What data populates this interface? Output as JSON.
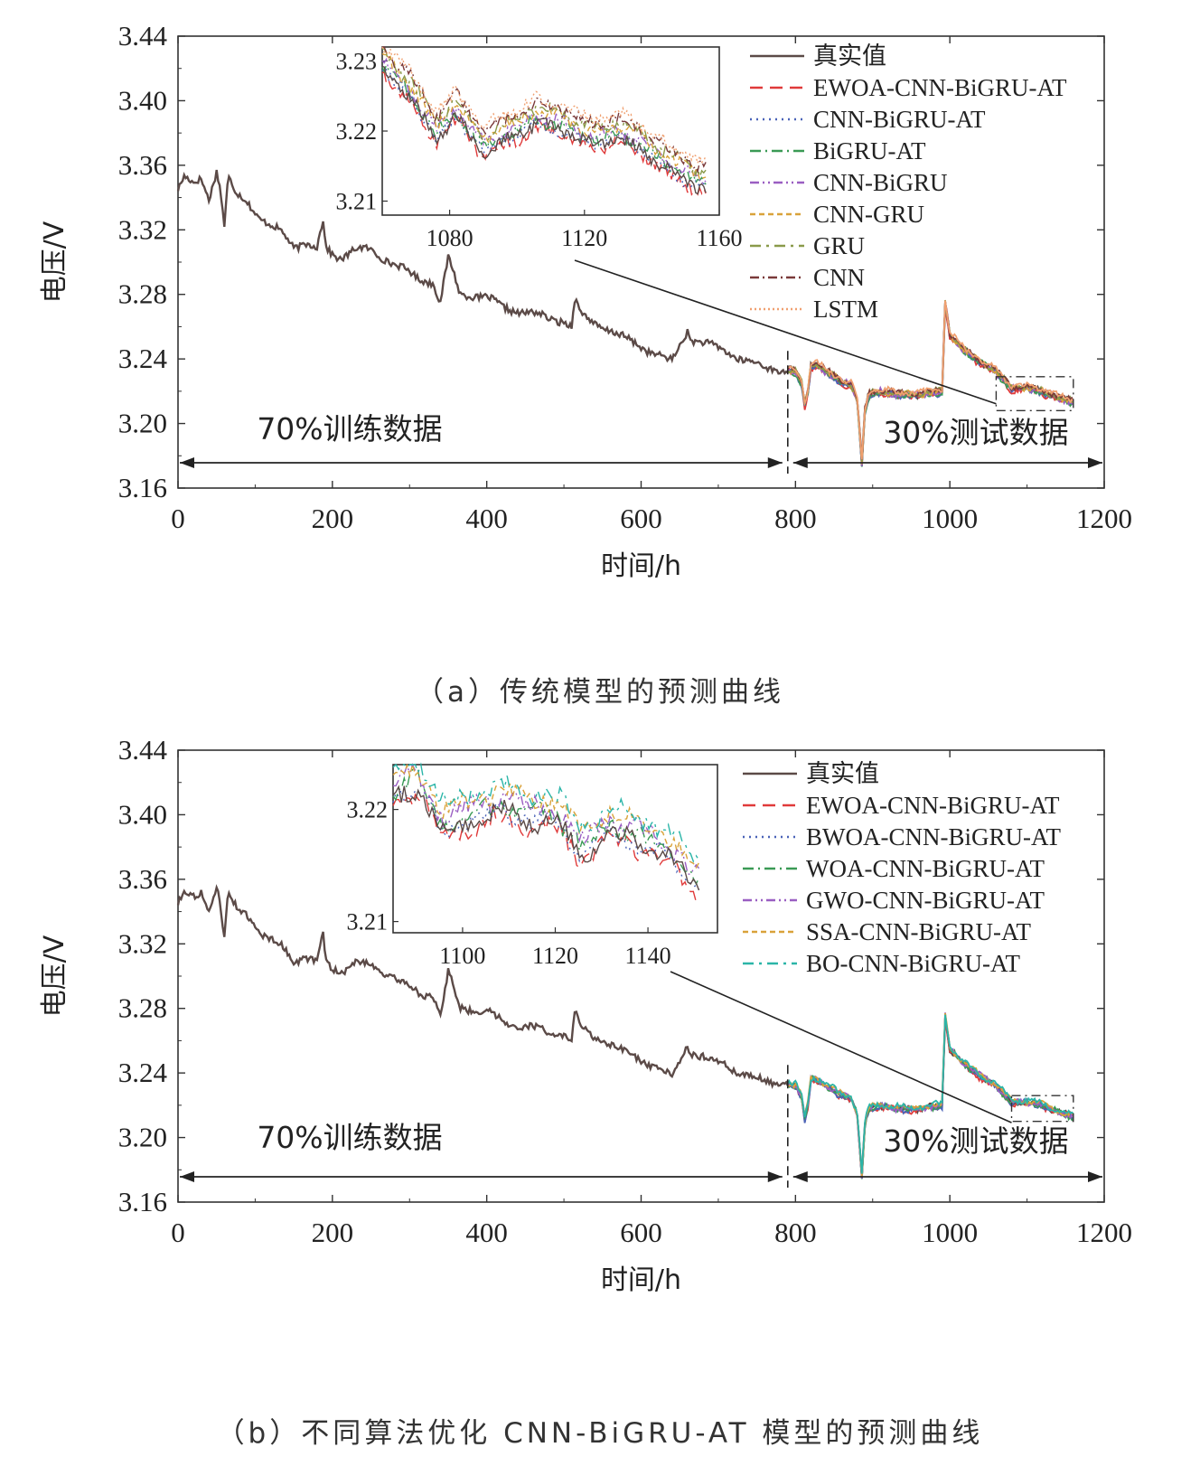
{
  "chart_data": [
    {
      "type": "line",
      "caption": "（a）传统模型的预测曲线",
      "xlabel": "时间/h",
      "ylabel": "电压/V",
      "xlim": [
        0,
        1200
      ],
      "ylim": [
        3.16,
        3.44
      ],
      "x_ticks": [
        "0",
        "200",
        "400",
        "600",
        "800",
        "1000",
        "1200"
      ],
      "y_ticks": [
        "3.16",
        "3.20",
        "3.24",
        "3.28",
        "3.32",
        "3.36",
        "3.40",
        "3.44"
      ],
      "split_x": 790,
      "train_label": "70%训练数据",
      "test_label": "30%测试数据",
      "series": [
        {
          "name": "真实值",
          "color": "#5b4a47"
        },
        {
          "name": "EWOA-CNN-BiGRU-AT",
          "color": "#e03a3a"
        },
        {
          "name": "CNN-BiGRU-AT",
          "color": "#4a63b8"
        },
        {
          "name": "BiGRU-AT",
          "color": "#3a9a55"
        },
        {
          "name": "CNN-BiGRU",
          "color": "#9a5ec2"
        },
        {
          "name": "CNN-GRU",
          "color": "#d9a23a"
        },
        {
          "name": "GRU",
          "color": "#8a9a4a"
        },
        {
          "name": "CNN",
          "color": "#7a3a3a"
        },
        {
          "name": "LSTM",
          "color": "#f0a070"
        }
      ],
      "actual_profile": {
        "x": [
          0,
          8,
          20,
          30,
          40,
          50,
          55,
          60,
          65,
          75,
          90,
          105,
          120,
          135,
          150,
          165,
          180,
          188,
          192,
          200,
          210,
          230,
          250,
          270,
          290,
          310,
          330,
          340,
          350,
          355,
          365,
          380,
          400,
          420,
          440,
          460,
          480,
          500,
          510,
          515,
          520,
          540,
          560,
          580,
          600,
          620,
          640,
          660,
          663,
          670,
          690,
          710,
          730,
          750,
          770,
          790
        ],
        "y": [
          3.345,
          3.352,
          3.348,
          3.352,
          3.34,
          3.357,
          3.345,
          3.322,
          3.352,
          3.342,
          3.338,
          3.328,
          3.322,
          3.318,
          3.31,
          3.312,
          3.308,
          3.325,
          3.308,
          3.305,
          3.303,
          3.308,
          3.307,
          3.302,
          3.296,
          3.29,
          3.288,
          3.275,
          3.302,
          3.296,
          3.28,
          3.28,
          3.278,
          3.272,
          3.27,
          3.268,
          3.265,
          3.264,
          3.26,
          3.28,
          3.268,
          3.262,
          3.258,
          3.252,
          3.248,
          3.243,
          3.238,
          3.258,
          3.253,
          3.252,
          3.248,
          3.245,
          3.24,
          3.236,
          3.234,
          3.233
        ]
      },
      "test_profile": {
        "x": [
          790,
          800,
          808,
          812,
          816,
          820,
          828,
          840,
          860,
          872,
          880,
          886,
          890,
          895,
          910,
          930,
          960,
          990,
          994,
          1000,
          1020,
          1040,
          1060,
          1080,
          1100,
          1120,
          1140,
          1160
        ],
        "y": [
          3.233,
          3.232,
          3.225,
          3.212,
          3.22,
          3.236,
          3.236,
          3.232,
          3.226,
          3.224,
          3.215,
          3.175,
          3.208,
          3.218,
          3.22,
          3.218,
          3.218,
          3.22,
          3.275,
          3.255,
          3.245,
          3.238,
          3.232,
          3.222,
          3.222,
          3.22,
          3.216,
          3.213
        ]
      },
      "inset": {
        "xlim": [
          1060,
          1160
        ],
        "ylim": [
          3.208,
          3.232
        ],
        "x_ticks": [
          "1080",
          "1120",
          "1160"
        ],
        "y_ticks": [
          "3.21",
          "3.22",
          "3.23"
        ],
        "source_xlim": [
          1060,
          1160
        ],
        "source_ylim": [
          3.208,
          3.229
        ],
        "x": [
          1060,
          1068,
          1076,
          1082,
          1090,
          1098,
          1106,
          1114,
          1122,
          1130,
          1138,
          1146,
          1154
        ],
        "y": [
          3.229,
          3.225,
          3.219,
          3.222,
          3.217,
          3.219,
          3.221,
          3.22,
          3.218,
          3.219,
          3.217,
          3.214,
          3.212
        ]
      }
    },
    {
      "type": "line",
      "caption": "（b）不同算法优化 CNN-BiGRU-AT 模型的预测曲线",
      "xlabel": "时间/h",
      "ylabel": "电压/V",
      "xlim": [
        0,
        1200
      ],
      "ylim": [
        3.16,
        3.44
      ],
      "x_ticks": [
        "0",
        "200",
        "400",
        "600",
        "800",
        "1000",
        "1200"
      ],
      "y_ticks": [
        "3.16",
        "3.20",
        "3.24",
        "3.28",
        "3.32",
        "3.36",
        "3.40",
        "3.44"
      ],
      "split_x": 790,
      "train_label": "70%训练数据",
      "test_label": "30%测试数据",
      "series": [
        {
          "name": "真实值",
          "color": "#5b4a47"
        },
        {
          "name": "EWOA-CNN-BiGRU-AT",
          "color": "#e03a3a"
        },
        {
          "name": "BWOA-CNN-BiGRU-AT",
          "color": "#4a63b8"
        },
        {
          "name": "WOA-CNN-BiGRU-AT",
          "color": "#3a9a55"
        },
        {
          "name": "GWO-CNN-BiGRU-AT",
          "color": "#9a5ec2"
        },
        {
          "name": "SSA-CNN-BiGRU-AT",
          "color": "#d9a23a"
        },
        {
          "name": "BO-CNN-BiGRU-AT",
          "color": "#2bb5a8"
        }
      ],
      "actual_profile": {
        "x": [
          0,
          8,
          20,
          30,
          40,
          50,
          55,
          60,
          65,
          75,
          90,
          105,
          120,
          135,
          150,
          165,
          180,
          188,
          192,
          200,
          210,
          230,
          250,
          270,
          290,
          310,
          330,
          340,
          350,
          355,
          365,
          380,
          400,
          420,
          440,
          460,
          480,
          500,
          510,
          515,
          520,
          540,
          560,
          580,
          600,
          620,
          640,
          660,
          663,
          670,
          690,
          710,
          730,
          750,
          770,
          790
        ],
        "y": [
          3.345,
          3.352,
          3.348,
          3.352,
          3.34,
          3.357,
          3.345,
          3.322,
          3.352,
          3.342,
          3.338,
          3.328,
          3.322,
          3.318,
          3.31,
          3.312,
          3.308,
          3.325,
          3.308,
          3.305,
          3.303,
          3.308,
          3.307,
          3.302,
          3.296,
          3.29,
          3.288,
          3.275,
          3.302,
          3.296,
          3.28,
          3.28,
          3.278,
          3.272,
          3.27,
          3.268,
          3.265,
          3.264,
          3.26,
          3.28,
          3.268,
          3.262,
          3.258,
          3.252,
          3.248,
          3.243,
          3.238,
          3.258,
          3.253,
          3.252,
          3.248,
          3.245,
          3.24,
          3.236,
          3.234,
          3.233
        ]
      },
      "test_profile": {
        "x": [
          790,
          800,
          808,
          812,
          816,
          820,
          828,
          840,
          860,
          872,
          880,
          886,
          890,
          895,
          910,
          930,
          960,
          990,
          994,
          1000,
          1020,
          1040,
          1060,
          1080,
          1100,
          1120,
          1140,
          1160
        ],
        "y": [
          3.233,
          3.232,
          3.225,
          3.212,
          3.22,
          3.236,
          3.236,
          3.232,
          3.226,
          3.224,
          3.215,
          3.175,
          3.208,
          3.218,
          3.22,
          3.218,
          3.218,
          3.22,
          3.275,
          3.255,
          3.245,
          3.238,
          3.232,
          3.222,
          3.222,
          3.22,
          3.216,
          3.213
        ]
      },
      "inset": {
        "xlim": [
          1085,
          1155
        ],
        "ylim": [
          3.209,
          3.224
        ],
        "x_ticks": [
          "1100",
          "1120",
          "1140"
        ],
        "y_ticks": [
          "3.21",
          "3.22"
        ],
        "source_xlim": [
          1080,
          1160
        ],
        "source_ylim": [
          3.21,
          3.226
        ],
        "x": [
          1085,
          1090,
          1096,
          1102,
          1108,
          1114,
          1120,
          1126,
          1132,
          1138,
          1144,
          1150,
          1155
        ],
        "y": [
          3.221,
          3.222,
          3.218,
          3.219,
          3.22,
          3.219,
          3.219,
          3.216,
          3.218,
          3.217,
          3.216,
          3.213,
          3.212
        ]
      }
    }
  ]
}
